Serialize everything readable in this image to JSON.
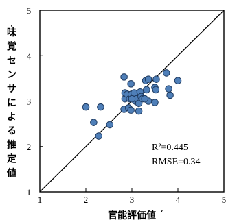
{
  "chart_data": {
    "type": "scatter",
    "title": "",
    "xlabel": "官能評価値",
    "xlabel_sup": "z",
    "ylabel": "味覚センサによる推定値",
    "ylabel_sup": "x",
    "xlim": [
      1,
      5
    ],
    "ylim": [
      1,
      5
    ],
    "x_ticks": [
      "1",
      "2",
      "3",
      "4",
      "5"
    ],
    "y_ticks": [
      "1",
      "2",
      "3",
      "4",
      "5"
    ],
    "grid": false,
    "legend": "none",
    "reference_line": "y = x",
    "annotations": [
      "R²=0.445",
      "RMSE=0.34"
    ],
    "marker_color": "#4f7fb8",
    "marker_edge": "#1f3a5f",
    "series": [
      {
        "points": [
          [
            2.0,
            2.87
          ],
          [
            2.17,
            2.53
          ],
          [
            2.28,
            2.23
          ],
          [
            2.32,
            2.87
          ],
          [
            2.52,
            2.48
          ],
          [
            2.83,
            3.53
          ],
          [
            2.83,
            2.82
          ],
          [
            2.85,
            3.18
          ],
          [
            2.85,
            3.05
          ],
          [
            2.9,
            3.15
          ],
          [
            2.93,
            2.85
          ],
          [
            2.95,
            3.05
          ],
          [
            2.98,
            2.8
          ],
          [
            2.98,
            3.38
          ],
          [
            2.99,
            3.15
          ],
          [
            3.05,
            3.18
          ],
          [
            3.08,
            3.0
          ],
          [
            3.1,
            3.05
          ],
          [
            3.15,
            2.95
          ],
          [
            3.15,
            2.78
          ],
          [
            3.18,
            3.2
          ],
          [
            3.2,
            3.1
          ],
          [
            3.23,
            3.05
          ],
          [
            3.3,
            3.45
          ],
          [
            3.32,
            3.25
          ],
          [
            3.36,
            3.48
          ],
          [
            3.36,
            3.0
          ],
          [
            3.5,
            3.3
          ],
          [
            3.5,
            2.97
          ],
          [
            3.52,
            3.25
          ],
          [
            3.53,
            3.48
          ],
          [
            3.75,
            3.62
          ],
          [
            3.8,
            3.27
          ],
          [
            3.83,
            3.13
          ],
          [
            4.0,
            3.45
          ],
          [
            3.0,
            3.05
          ],
          [
            3.28,
            3.05
          ]
        ]
      }
    ]
  }
}
